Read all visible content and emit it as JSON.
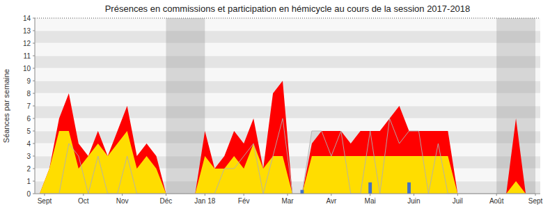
{
  "chart_data": {
    "type": "area",
    "title": "Présences en commissions et participation en hémicycle au cours de la session 2017-2018",
    "ylabel": "Séances par semaine",
    "x": [
      0,
      1,
      2,
      3,
      4,
      5,
      6,
      7,
      8,
      9,
      10,
      11,
      12,
      13,
      14,
      15,
      16,
      17,
      18,
      19,
      20,
      21,
      22,
      23,
      24,
      25,
      26,
      27,
      28,
      29,
      30,
      31,
      32,
      33,
      34,
      35,
      36,
      37,
      38,
      39,
      40,
      41,
      42,
      43,
      44,
      45,
      46,
      47,
      48,
      49,
      50,
      51
    ],
    "xlim": [
      -0.5,
      51.5
    ],
    "xticks": [
      {
        "value": 0.5,
        "label": "Sept"
      },
      {
        "value": 4.5,
        "label": "Oct"
      },
      {
        "value": 8.5,
        "label": "Nov"
      },
      {
        "value": 13,
        "label": "Déc"
      },
      {
        "value": 17,
        "label": "Jan 18"
      },
      {
        "value": 21,
        "label": "Fév"
      },
      {
        "value": 25.5,
        "label": "Mar"
      },
      {
        "value": 30,
        "label": "Avr"
      },
      {
        "value": 34,
        "label": "Mai"
      },
      {
        "value": 38.5,
        "label": "Juin"
      },
      {
        "value": 43,
        "label": "Juil"
      },
      {
        "value": 47,
        "label": "Août"
      },
      {
        "value": 51,
        "label": "Sept"
      }
    ],
    "ylim": [
      0,
      14
    ],
    "yticks": [
      0,
      1,
      2,
      3,
      4,
      5,
      6,
      7,
      8,
      9,
      10,
      11,
      12,
      13,
      14
    ],
    "grid": true,
    "x_bands": [
      [
        13,
        17
      ],
      [
        47,
        51
      ]
    ],
    "series": [
      {
        "type": "area",
        "color": "#ff0000",
        "values": [
          0,
          2,
          6,
          8,
          4,
          3,
          5,
          3,
          5,
          7,
          3,
          4,
          3,
          0,
          0,
          0,
          0,
          5,
          2,
          3,
          5,
          4,
          6,
          2,
          8,
          9,
          0,
          0,
          4,
          5,
          5,
          5,
          4,
          5,
          5,
          5,
          6,
          7,
          5,
          5,
          5,
          5,
          5,
          0,
          0,
          0,
          0,
          0,
          0,
          6,
          0,
          0
        ]
      },
      {
        "type": "area",
        "color": "#ffdd00",
        "values": [
          0,
          2,
          5,
          5,
          2,
          3,
          4,
          3,
          4,
          5,
          2,
          3,
          2,
          0,
          0,
          0,
          0,
          3,
          2,
          2,
          3,
          2,
          4,
          2,
          3,
          3,
          0,
          0,
          3,
          3,
          3,
          3,
          3,
          3,
          3,
          3,
          3,
          3,
          3,
          3,
          3,
          3,
          3,
          0,
          0,
          0,
          0,
          0,
          0,
          1,
          0,
          0
        ]
      },
      {
        "type": "line",
        "color": "#b0b0b0",
        "values": [
          0,
          0,
          0,
          4,
          3,
          0,
          3,
          0,
          0,
          3,
          0,
          0,
          0,
          0,
          0,
          0,
          0,
          0,
          0,
          2,
          2,
          3,
          4,
          0,
          3,
          6,
          0,
          0,
          5,
          5,
          3,
          5,
          0,
          0,
          5,
          0,
          6,
          4,
          5,
          5,
          0,
          4,
          0,
          0,
          0,
          0,
          0,
          0,
          0,
          0,
          0,
          0
        ]
      },
      {
        "type": "bar",
        "color": "#4472c4",
        "x": [
          27,
          34,
          38
        ],
        "values": [
          0.3,
          0.9,
          0.9
        ]
      }
    ]
  }
}
